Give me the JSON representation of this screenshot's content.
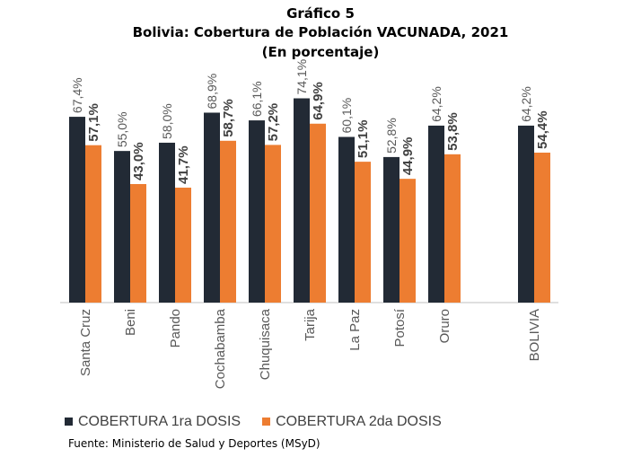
{
  "title": "Gráfico 5",
  "subtitle": "Bolivia: Cobertura de Población VACUNADA, 2021",
  "subtitle2": "(En porcentaje)",
  "source": "Fuente: Ministerio de Salud y Deportes (MSyD)",
  "chart_data": {
    "type": "bar",
    "categories": [
      "Santa Cruz",
      "Beni",
      "Pando",
      "Cochabamba",
      "Chuquisaca",
      "Tarija",
      "La Paz",
      "Potosí",
      "Oruro",
      "BOLIVIA"
    ],
    "series": [
      {
        "name": "COBERTURA 1ra DOSIS",
        "color": "#222a35",
        "values": [
          67.4,
          55.0,
          58.0,
          68.9,
          66.1,
          74.1,
          60.1,
          52.8,
          64.2,
          64.2
        ],
        "labels": [
          "67,4%",
          "55,0%",
          "58,0%",
          "68,9%",
          "66,1%",
          "74,1%",
          "60,1%",
          "52,8%",
          "64,2%",
          "64,2%"
        ]
      },
      {
        "name": "COBERTURA 2da DOSIS",
        "color": "#ed7d31",
        "values": [
          57.1,
          43.0,
          41.7,
          58.7,
          57.2,
          64.9,
          51.1,
          44.9,
          53.8,
          54.4
        ],
        "labels": [
          "57,1%",
          "43,0%",
          "41,7%",
          "58,7%",
          "57,2%",
          "64,9%",
          "51,1%",
          "44,9%",
          "53,8%",
          "54,4%"
        ]
      }
    ],
    "ylim": [
      0,
      100
    ],
    "grid": false,
    "legend": "bottom"
  }
}
